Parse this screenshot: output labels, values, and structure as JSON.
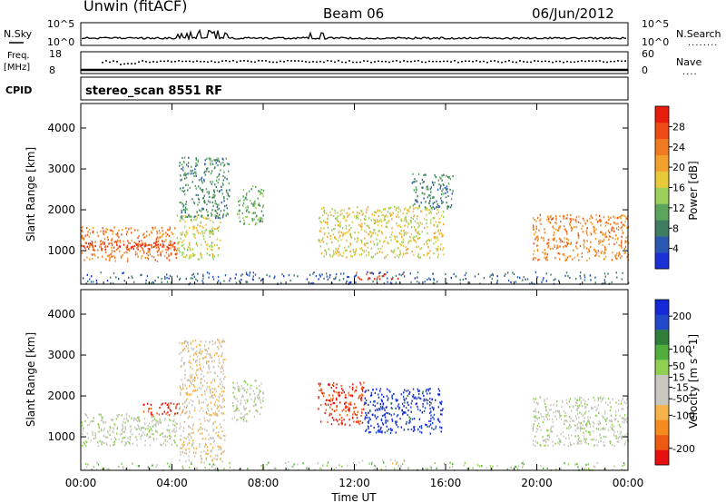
{
  "header": {
    "station": "Unwin (fitACF)",
    "beam": "Beam 06",
    "date": "06/Jun/2012"
  },
  "summary_panels": {
    "nsky": {
      "label": "N.Sky",
      "ticks": [
        "10^5",
        "10^0"
      ]
    },
    "nsearch": {
      "label": "N.Search",
      "ticks": [
        "10^5",
        "10^0"
      ],
      "dots": "........"
    },
    "freq": {
      "label_line1": "Freq.",
      "label_line2": "[MHz]",
      "ticks": [
        "18",
        "8"
      ]
    },
    "nave": {
      "label": "Nave",
      "ticks": [
        "60",
        "0"
      ],
      "dots": "...."
    },
    "cpid": {
      "label": "CPID",
      "value": "stereo_scan 8551 RF"
    }
  },
  "colors": {
    "power_scale": [
      "#1a2fd6",
      "#2a57b0",
      "#3f7d62",
      "#5ca55c",
      "#9bd05a",
      "#e8c93a",
      "#f3a12c",
      "#f07a20",
      "#ee4a16",
      "#e81c0c"
    ],
    "velocity_scale": [
      "#e80f0f",
      "#ef5a12",
      "#f58a1e",
      "#f5b34a",
      "#c8c8c0",
      "#c8c8c0",
      "#8fcf52",
      "#4fae3c",
      "#2f7f38",
      "#2048c8",
      "#1428d8"
    ]
  },
  "chart_data": [
    {
      "type": "heatmap",
      "name": "power",
      "ylabel": "Slant Range [km]",
      "xlabel": "Time UT",
      "x_ticks": [
        "00:00",
        "04:00",
        "08:00",
        "12:00",
        "16:00",
        "20:00",
        "00:00"
      ],
      "xlim_hours": [
        0,
        24
      ],
      "y_ticks": [
        1000,
        2000,
        3000,
        4000
      ],
      "ylim": [
        180,
        4600
      ],
      "colorbar": {
        "label": "Power [dB]",
        "ticks": [
          4,
          8,
          12,
          16,
          20,
          24,
          28
        ],
        "range": [
          0,
          32
        ]
      },
      "regions": [
        {
          "t": [
            0.0,
            4.2
          ],
          "r": [
            760,
            1600
          ],
          "value": 24
        },
        {
          "t": [
            0.0,
            4.2
          ],
          "r": [
            1050,
            1250
          ],
          "value": 29
        },
        {
          "t": [
            4.2,
            6.1
          ],
          "r": [
            800,
            1900
          ],
          "value": 16
        },
        {
          "t": [
            4.3,
            6.5
          ],
          "r": [
            1800,
            3300
          ],
          "value": 9
        },
        {
          "t": [
            6.8,
            8.0
          ],
          "r": [
            1650,
            2600
          ],
          "value": 12
        },
        {
          "t": [
            10.4,
            15.9
          ],
          "r": [
            850,
            2100
          ],
          "value": 17
        },
        {
          "t": [
            12.0,
            14.2
          ],
          "r": [
            300,
            480
          ],
          "value": 29
        },
        {
          "t": [
            14.5,
            16.3
          ],
          "r": [
            2050,
            2900
          ],
          "value": 8
        },
        {
          "t": [
            19.8,
            24.0
          ],
          "r": [
            780,
            1900
          ],
          "value": 23
        },
        {
          "t": [
            0.0,
            24.0
          ],
          "r": [
            200,
            500
          ],
          "value": 6
        }
      ]
    },
    {
      "type": "heatmap",
      "name": "velocity",
      "ylabel": "Slant Range [km]",
      "xlabel": "Time UT",
      "x_ticks": [
        "00:00",
        "04:00",
        "08:00",
        "12:00",
        "16:00",
        "20:00",
        "00:00"
      ],
      "xlim_hours": [
        0,
        24
      ],
      "y_ticks": [
        1000,
        2000,
        3000,
        4000
      ],
      "ylim": [
        180,
        4600
      ],
      "colorbar": {
        "label": "Velocity [m s^-1]",
        "ticks": [
          200,
          100,
          50,
          15,
          -15,
          -50,
          -100,
          -200
        ],
        "range": [
          -250,
          250
        ]
      },
      "regions": [
        {
          "t": [
            0.0,
            4.2
          ],
          "r": [
            800,
            1600
          ],
          "value": 0
        },
        {
          "t": [
            2.7,
            4.3
          ],
          "r": [
            1550,
            1850
          ],
          "value": -220
        },
        {
          "t": [
            4.3,
            6.3
          ],
          "r": [
            400,
            3400
          ],
          "value": -60
        },
        {
          "t": [
            6.6,
            8.0
          ],
          "r": [
            1400,
            2400
          ],
          "value": 0
        },
        {
          "t": [
            10.4,
            12.4
          ],
          "r": [
            1300,
            2350
          ],
          "value": -210
        },
        {
          "t": [
            12.4,
            15.9
          ],
          "r": [
            1100,
            2200
          ],
          "value": 210
        },
        {
          "t": [
            12.0,
            14.2
          ],
          "r": [
            300,
            460
          ],
          "value": -60
        },
        {
          "t": [
            19.8,
            24.0
          ],
          "r": [
            800,
            2000
          ],
          "value": 0
        },
        {
          "t": [
            0.0,
            24.0
          ],
          "r": [
            200,
            400
          ],
          "value": 40
        }
      ]
    }
  ]
}
